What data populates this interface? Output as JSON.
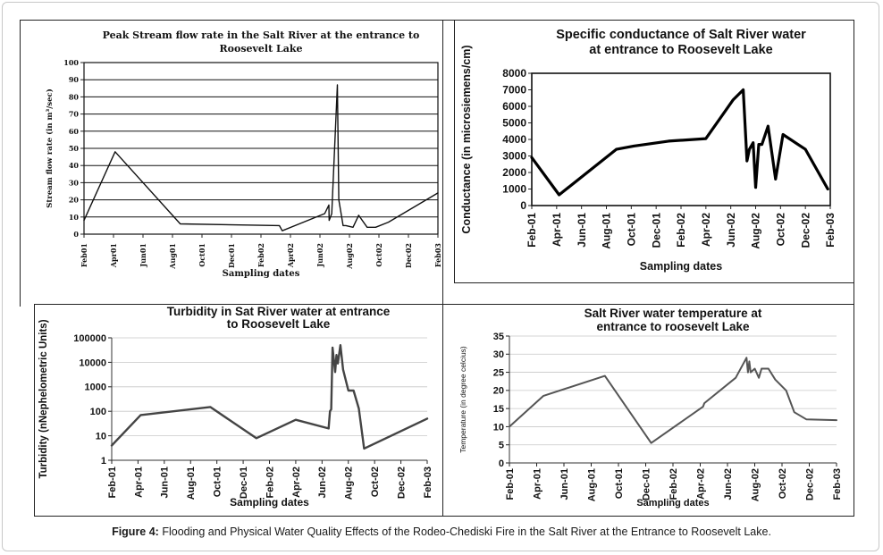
{
  "figure": {
    "caption_label": "Figure 4:",
    "caption_text": " Flooding and Physical Water Quality Effects of the Rodeo-Chediski Fire in the Salt River at the Entrance to Roosevelt Lake."
  },
  "chart_data": [
    {
      "id": "streamflow",
      "type": "line",
      "title": [
        "Peak Stream flow rate in the Salt River at the entrance to",
        "Roosevelt Lake"
      ],
      "xlabel": "Sampling dates",
      "ylabel": "Stream flow rate (in m³/sec)",
      "ylim": [
        0,
        100
      ],
      "yticks": [
        0,
        10,
        20,
        30,
        40,
        50,
        60,
        70,
        80,
        90,
        100
      ],
      "xlim": [
        0,
        25
      ],
      "xtick_labels": [
        "Feb01",
        "Apr01",
        "Jun01",
        "Aug01",
        "Oct01",
        "Dec01",
        "Feb02",
        "Apr02",
        "Jun02",
        "Aug02",
        "Oct02",
        "Dec02",
        "Feb03"
      ],
      "grid": "horizontal",
      "x": [
        0,
        2.2,
        6.8,
        13.8,
        14.0,
        17.0,
        17.3,
        17.32,
        17.5,
        17.9,
        18.0,
        18.2,
        18.3,
        18.5,
        19.0,
        19.4,
        20.0,
        20.6,
        21.5,
        25.0
      ],
      "y": [
        8,
        48,
        6,
        5,
        2,
        12,
        17,
        8,
        12,
        87,
        20,
        10,
        5,
        5,
        4,
        11,
        4,
        4,
        7,
        24
      ]
    },
    {
      "id": "conductance",
      "type": "line",
      "title": [
        "Specific conductance of Salt River water",
        "at entrance to Roosevelt Lake"
      ],
      "xlabel": "Sampling dates",
      "ylabel": "Conductance (in microsiemens/cm)",
      "ylim": [
        0,
        8000
      ],
      "yticks": [
        0,
        1000,
        2000,
        3000,
        4000,
        5000,
        6000,
        7000,
        8000
      ],
      "xlim": [
        0,
        24
      ],
      "xtick_labels": [
        "Feb-01",
        "Apr-01",
        "Jun-01",
        "Aug-01",
        "Oct-01",
        "Dec-01",
        "Feb-02",
        "Apr-02",
        "Jun-02",
        "Aug-02",
        "Oct-02",
        "Dec-02",
        "Feb-03"
      ],
      "grid": "none",
      "x": [
        0,
        2.2,
        6.8,
        8.2,
        11.0,
        14.0,
        16.2,
        17.0,
        17.3,
        17.5,
        17.8,
        18.0,
        18.25,
        18.5,
        19.0,
        19.6,
        20.2,
        22.0,
        23.8
      ],
      "y": [
        2900,
        650,
        3400,
        3600,
        3900,
        4050,
        6400,
        7000,
        2700,
        3400,
        3800,
        1100,
        3700,
        3700,
        4800,
        1600,
        4300,
        3400,
        1000
      ]
    },
    {
      "id": "turbidity",
      "type": "line",
      "title": [
        "Turbidity in Sat River water at entrance",
        "to Roosevelt Lake"
      ],
      "xlabel": "Sampling dates",
      "ylabel": "Turbidity (nNephelometric Units)",
      "scale": "log",
      "ylim": [
        1,
        100000
      ],
      "yticks": [
        1,
        10,
        100,
        1000,
        10000,
        100000
      ],
      "xlim": [
        0,
        24
      ],
      "xtick_labels": [
        "Feb-01",
        "Apr-01",
        "Jun-01",
        "Aug-01",
        "Oct-01",
        "Dec-01",
        "Feb-02",
        "Apr-02",
        "Jun-02",
        "Aug-02",
        "Oct-02",
        "Dec-02",
        "Feb-03"
      ],
      "grid": "horizontal",
      "x": [
        0,
        2.2,
        7.5,
        11.0,
        14.0,
        16.5,
        16.6,
        16.7,
        16.8,
        17.0,
        17.1,
        17.2,
        17.4,
        17.6,
        18.0,
        18.4,
        18.8,
        19.2,
        24.0
      ],
      "y": [
        4,
        70,
        150,
        8,
        45,
        20,
        100,
        120,
        40000,
        4000,
        20000,
        9000,
        50000,
        5000,
        700,
        700,
        130,
        3,
        50
      ]
    },
    {
      "id": "temperature",
      "type": "line",
      "title": [
        "Salt River water temperature at",
        "entrance to roosevelt Lake"
      ],
      "xlabel": "Sampling dates",
      "ylabel": "Temperature (in degree celcius)",
      "ylim": [
        0,
        35
      ],
      "yticks": [
        0,
        5,
        10,
        15,
        20,
        25,
        30,
        35
      ],
      "xlim": [
        0,
        24
      ],
      "xtick_labels": [
        "Feb-01",
        "Apr-01",
        "Jun-01",
        "Aug-01",
        "Oct-01",
        "Dec-01",
        "Feb-02",
        "Apr-02",
        "Jun-02",
        "Aug-02",
        "Oct-02",
        "Dec-02",
        "Feb-03"
      ],
      "grid": "horizontal",
      "x": [
        0,
        2.5,
        7.0,
        10.4,
        14.2,
        14.3,
        16.6,
        17.4,
        17.5,
        17.6,
        17.7,
        18.0,
        18.3,
        18.5,
        19.0,
        19.5,
        20.3,
        20.9,
        21.8,
        24.0
      ],
      "y": [
        10,
        18.5,
        24,
        5.5,
        15.5,
        16.5,
        23.5,
        29,
        25,
        28,
        25,
        26,
        23.5,
        26,
        26,
        23,
        20,
        14,
        12,
        11.8
      ]
    }
  ]
}
